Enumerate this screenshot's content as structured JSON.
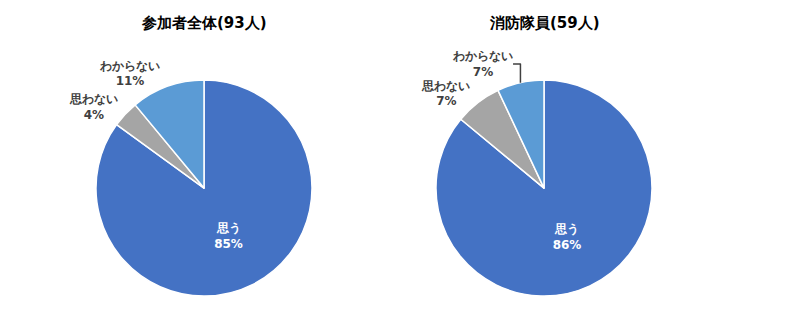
{
  "chart_data": [
    {
      "type": "pie",
      "title": "参加者全体(93人)",
      "categories": [
        "思う",
        "思わない",
        "わからない"
      ],
      "values": [
        85,
        4,
        11
      ],
      "value_labels": [
        "85%",
        "4%",
        "11%"
      ],
      "colors": [
        "#4472c4",
        "#a5a5a5",
        "#5b9bd5"
      ],
      "data_labels": true
    },
    {
      "type": "pie",
      "title": "消防隊員(59人)",
      "categories": [
        "思う",
        "思わない",
        "わからない"
      ],
      "values": [
        86,
        7,
        7
      ],
      "value_labels": [
        "86%",
        "7%",
        "7%"
      ],
      "colors": [
        "#4472c4",
        "#a5a5a5",
        "#5b9bd5"
      ],
      "data_labels": true
    }
  ]
}
